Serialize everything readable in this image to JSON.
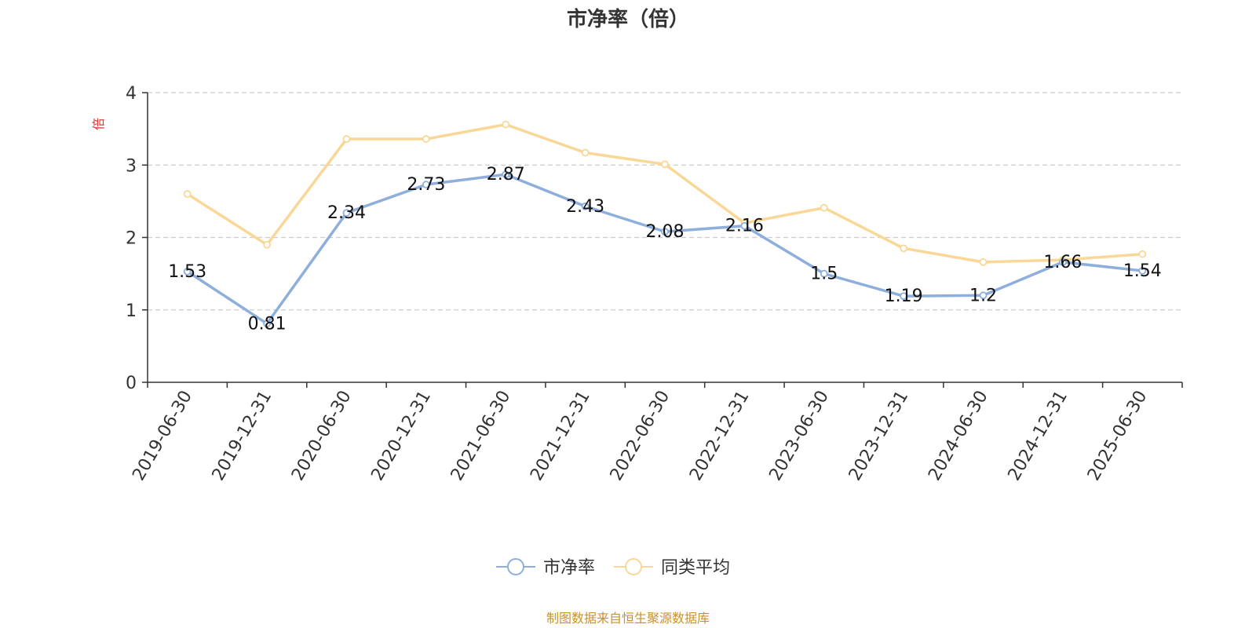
{
  "chart_data": {
    "type": "line",
    "title": "市净率（倍）",
    "ylabel": "倍",
    "xlabel": "",
    "categories": [
      "2019-06-30",
      "2019-12-31",
      "2020-06-30",
      "2020-12-31",
      "2021-06-30",
      "2021-12-31",
      "2022-06-30",
      "2022-12-31",
      "2023-06-30",
      "2023-12-31",
      "2024-06-30",
      "2024-12-31",
      "2025-06-30"
    ],
    "ylim": [
      0,
      4
    ],
    "yticks": [
      "0",
      "1",
      "2",
      "3",
      "4"
    ],
    "grid": true,
    "legend_position": "bottom-center",
    "series": [
      {
        "name": "市净率",
        "color": "#8eafdb",
        "values": [
          1.53,
          0.81,
          2.34,
          2.73,
          2.87,
          2.43,
          2.08,
          2.16,
          1.5,
          1.19,
          1.2,
          1.66,
          1.54
        ],
        "labels": [
          "1.53",
          "0.81",
          "2.34",
          "2.73",
          "2.87",
          "2.43",
          "2.08",
          "2.16",
          "1.5",
          "1.19",
          "1.2",
          "1.66",
          "1.54"
        ]
      },
      {
        "name": "同类平均",
        "color": "#f9d897",
        "values": [
          2.6,
          1.9,
          3.36,
          3.36,
          3.56,
          3.17,
          3.01,
          2.2,
          2.41,
          1.85,
          1.66,
          1.69,
          1.77
        ]
      }
    ]
  },
  "source_note": "制图数据来自恒生聚源数据库",
  "colors": {
    "ylabel": "#e0302f",
    "axis": "#333333",
    "grid": "#cccccc",
    "source": "#c8922a"
  }
}
